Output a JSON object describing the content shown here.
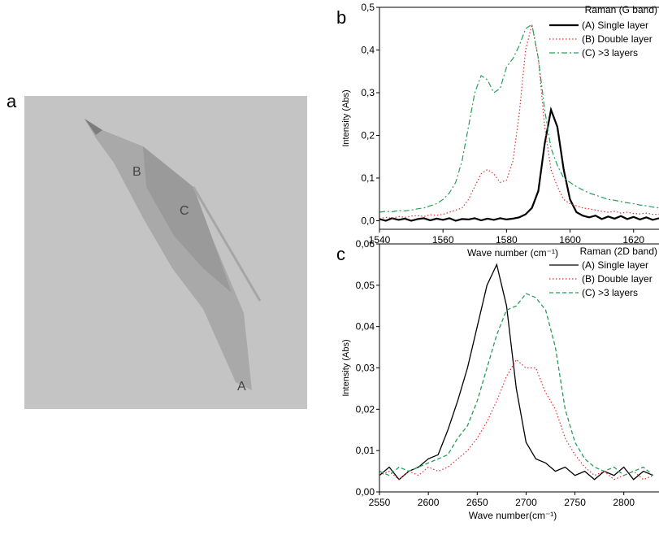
{
  "image_panel": {
    "label": "a",
    "markers": [
      "A",
      "B",
      "C"
    ]
  },
  "chart_data": [
    {
      "type": "line",
      "panel": "b",
      "legend_title": "Raman (G band)",
      "xlabel": "Wave number (cm⁻¹)",
      "ylabel": "Intensity (Abs)",
      "xlim": [
        1540,
        1628
      ],
      "ylim": [
        -0.02,
        0.5
      ],
      "xticks": [
        1540,
        1560,
        1580,
        1600,
        1620
      ],
      "yticks": [
        {
          "value": 0,
          "label": "0,0"
        },
        {
          "value": 0.1,
          "label": "0,1"
        },
        {
          "value": 0.2,
          "label": "0,2"
        },
        {
          "value": 0.3,
          "label": "0,3"
        },
        {
          "value": 0.4,
          "label": "0,4"
        },
        {
          "value": 0.5,
          "label": "0,5"
        }
      ],
      "legend": "upper right",
      "x": [
        1540,
        1542,
        1544,
        1546,
        1548,
        1550,
        1552,
        1554,
        1556,
        1558,
        1560,
        1562,
        1564,
        1566,
        1568,
        1570,
        1572,
        1574,
        1576,
        1578,
        1580,
        1582,
        1584,
        1586,
        1588,
        1590,
        1592,
        1594,
        1596,
        1598,
        1600,
        1602,
        1604,
        1606,
        1608,
        1610,
        1612,
        1614,
        1616,
        1618,
        1620,
        1622,
        1624,
        1626,
        1628
      ],
      "series": [
        {
          "name": "(A) Single layer",
          "color": "#000000",
          "line_style": "solid",
          "line_width": 2.2,
          "values": [
            0.004,
            0,
            0.006,
            0.002,
            0.005,
            0,
            0.004,
            0.006,
            0.001,
            0.005,
            0.002,
            0.006,
            0,
            0.004,
            0.003,
            0.006,
            0.001,
            0.005,
            0.002,
            0.006,
            0.003,
            0.005,
            0.008,
            0.015,
            0.03,
            0.07,
            0.18,
            0.26,
            0.22,
            0.12,
            0.05,
            0.02,
            0.012,
            0.008,
            0.012,
            0.004,
            0.01,
            0.005,
            0.011,
            0.004,
            0.009,
            0.003,
            0.008,
            0.002,
            0.006
          ]
        },
        {
          "name": "(B) Double layer",
          "color": "#e03030",
          "line_style": "dotted",
          "line_width": 1.2,
          "values": [
            0.005,
            0.008,
            0.006,
            0.01,
            0.008,
            0.011,
            0.012,
            0.01,
            0.014,
            0.013,
            0.015,
            0.02,
            0.025,
            0.03,
            0.05,
            0.08,
            0.11,
            0.12,
            0.11,
            0.09,
            0.095,
            0.14,
            0.25,
            0.4,
            0.46,
            0.38,
            0.22,
            0.12,
            0.08,
            0.05,
            0.04,
            0.035,
            0.03,
            0.028,
            0.025,
            0.022,
            0.02,
            0.022,
            0.018,
            0.02,
            0.017,
            0.016,
            0.018,
            0.015,
            0.015
          ]
        },
        {
          "name": "(C) >3 layers",
          "color": "#2a9d5a",
          "line_style": "dashdot",
          "line_width": 1.2,
          "values": [
            0.02,
            0.022,
            0.021,
            0.024,
            0.023,
            0.025,
            0.028,
            0.03,
            0.035,
            0.04,
            0.05,
            0.065,
            0.09,
            0.14,
            0.22,
            0.3,
            0.34,
            0.33,
            0.3,
            0.31,
            0.36,
            0.38,
            0.41,
            0.45,
            0.46,
            0.38,
            0.26,
            0.17,
            0.13,
            0.1,
            0.09,
            0.08,
            0.072,
            0.065,
            0.06,
            0.055,
            0.05,
            0.048,
            0.045,
            0.042,
            0.04,
            0.037,
            0.035,
            0.032,
            0.03
          ]
        }
      ]
    },
    {
      "type": "line",
      "panel": "c",
      "legend_title": "Raman (2D band)",
      "xlabel": "Wave number(cm⁻¹)",
      "ylabel": "Intensity (Abs)",
      "xlim": [
        2550,
        2836
      ],
      "ylim": [
        0,
        0.06
      ],
      "xticks": [
        2550,
        2600,
        2650,
        2700,
        2750,
        2800
      ],
      "yticks": [
        {
          "value": 0,
          "label": "0,00"
        },
        {
          "value": 0.01,
          "label": "0,01"
        },
        {
          "value": 0.02,
          "label": "0,02"
        },
        {
          "value": 0.03,
          "label": "0,03"
        },
        {
          "value": 0.04,
          "label": "0,04"
        },
        {
          "value": 0.05,
          "label": "0,05"
        },
        {
          "value": 0.06,
          "label": "0,06"
        }
      ],
      "legend": "upper right",
      "x": [
        2550,
        2560,
        2570,
        2580,
        2590,
        2600,
        2610,
        2620,
        2630,
        2640,
        2650,
        2660,
        2670,
        2680,
        2690,
        2700,
        2710,
        2720,
        2730,
        2740,
        2750,
        2760,
        2770,
        2780,
        2790,
        2800,
        2810,
        2820,
        2830
      ],
      "series": [
        {
          "name": "(A) Single layer",
          "color": "#000000",
          "line_style": "solid",
          "line_width": 1.3,
          "values": [
            0.004,
            0.006,
            0.003,
            0.005,
            0.006,
            0.008,
            0.009,
            0.015,
            0.022,
            0.03,
            0.04,
            0.05,
            0.055,
            0.045,
            0.025,
            0.012,
            0.008,
            0.007,
            0.005,
            0.006,
            0.004,
            0.005,
            0.003,
            0.005,
            0.004,
            0.006,
            0.003,
            0.005,
            0.004
          ]
        },
        {
          "name": "(B) Double layer",
          "color": "#e03030",
          "line_style": "dotted",
          "line_width": 1.2,
          "values": [
            0.004,
            0.005,
            0.003,
            0.005,
            0.004,
            0.006,
            0.005,
            0.006,
            0.008,
            0.01,
            0.013,
            0.017,
            0.022,
            0.028,
            0.032,
            0.03,
            0.03,
            0.024,
            0.02,
            0.013,
            0.009,
            0.006,
            0.004,
            0.005,
            0.003,
            0.004,
            0.005,
            0.003,
            0.004
          ]
        },
        {
          "name": "(C) >3 layers",
          "color": "#2a9d5a",
          "line_style": "dashed",
          "line_width": 1.3,
          "values": [
            0.005,
            0.004,
            0.006,
            0.005,
            0.006,
            0.007,
            0.008,
            0.009,
            0.013,
            0.016,
            0.022,
            0.03,
            0.038,
            0.044,
            0.045,
            0.048,
            0.047,
            0.044,
            0.035,
            0.02,
            0.012,
            0.008,
            0.006,
            0.005,
            0.006,
            0.004,
            0.005,
            0.006,
            0.004
          ]
        }
      ]
    }
  ]
}
